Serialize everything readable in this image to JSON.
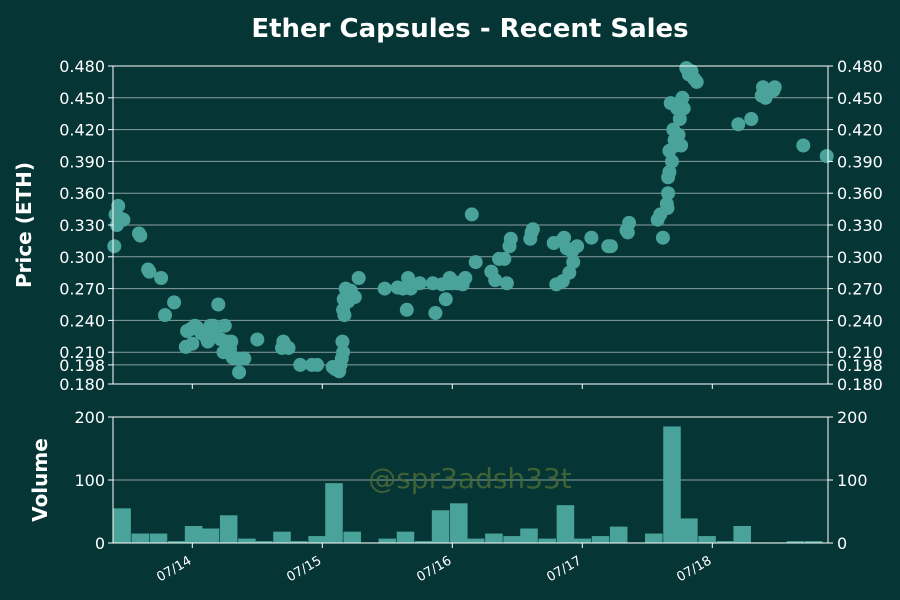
{
  "title": "Ether Capsules - Recent Sales",
  "watermark": "@spr3adsh33t",
  "colors": {
    "background": "#053535",
    "marker": "#4aa39a",
    "text": "#ffffff",
    "grid": "#8aa0a0"
  },
  "chart_data": [
    {
      "type": "scatter",
      "ylabel": "Price (ETH)",
      "ylim": [
        0.18,
        0.48
      ],
      "yticks": [
        "0.180",
        "0.198",
        "0.210",
        "0.240",
        "0.270",
        "0.300",
        "0.330",
        "0.360",
        "0.390",
        "0.420",
        "0.450",
        "0.480"
      ],
      "xlim": [
        13.39,
        18.89
      ],
      "xticks": [
        {
          "value": 14.0,
          "label": "07/14"
        },
        {
          "value": 15.0,
          "label": "07/15"
        },
        {
          "value": 16.0,
          "label": "07/16"
        },
        {
          "value": 17.0,
          "label": "07/17"
        },
        {
          "value": 18.0,
          "label": "07/18"
        }
      ],
      "grid": true,
      "points": [
        [
          13.4,
          0.31
        ],
        [
          13.41,
          0.34
        ],
        [
          13.42,
          0.33
        ],
        [
          13.43,
          0.348
        ],
        [
          13.45,
          0.336
        ],
        [
          13.47,
          0.335
        ],
        [
          13.59,
          0.322
        ],
        [
          13.6,
          0.32
        ],
        [
          13.66,
          0.288
        ],
        [
          13.67,
          0.286
        ],
        [
          13.76,
          0.28
        ],
        [
          13.79,
          0.245
        ],
        [
          13.86,
          0.257
        ],
        [
          13.95,
          0.215
        ],
        [
          13.96,
          0.23
        ],
        [
          13.99,
          0.232
        ],
        [
          14.0,
          0.218
        ],
        [
          14.02,
          0.235
        ],
        [
          14.04,
          0.233
        ],
        [
          14.07,
          0.228
        ],
        [
          14.1,
          0.225
        ],
        [
          14.12,
          0.22
        ],
        [
          14.14,
          0.235
        ],
        [
          14.16,
          0.235
        ],
        [
          14.18,
          0.23
        ],
        [
          14.2,
          0.255
        ],
        [
          14.22,
          0.222
        ],
        [
          14.24,
          0.21
        ],
        [
          14.25,
          0.235
        ],
        [
          14.27,
          0.22
        ],
        [
          14.29,
          0.213
        ],
        [
          14.3,
          0.22
        ],
        [
          14.31,
          0.205
        ],
        [
          14.34,
          0.204
        ],
        [
          14.36,
          0.191
        ],
        [
          14.4,
          0.204
        ],
        [
          14.5,
          0.222
        ],
        [
          14.69,
          0.214
        ],
        [
          14.7,
          0.22
        ],
        [
          14.72,
          0.216
        ],
        [
          14.74,
          0.214
        ],
        [
          14.83,
          0.198
        ],
        [
          14.92,
          0.198
        ],
        [
          14.96,
          0.198
        ],
        [
          15.08,
          0.196
        ],
        [
          15.1,
          0.194
        ],
        [
          15.12,
          0.197
        ],
        [
          15.13,
          0.192
        ],
        [
          15.14,
          0.198
        ],
        [
          15.15,
          0.204
        ],
        [
          15.16,
          0.21
        ],
        [
          15.155,
          0.22
        ],
        [
          15.16,
          0.25
        ],
        [
          15.165,
          0.26
        ],
        [
          15.17,
          0.245
        ],
        [
          15.18,
          0.27
        ],
        [
          15.2,
          0.258
        ],
        [
          15.22,
          0.268
        ],
        [
          15.25,
          0.262
        ],
        [
          15.28,
          0.28
        ],
        [
          15.48,
          0.27
        ],
        [
          15.58,
          0.271
        ],
        [
          15.62,
          0.27
        ],
        [
          15.65,
          0.25
        ],
        [
          15.66,
          0.28
        ],
        [
          15.68,
          0.27
        ],
        [
          15.75,
          0.275
        ],
        [
          15.85,
          0.275
        ],
        [
          15.87,
          0.247
        ],
        [
          15.92,
          0.274
        ],
        [
          15.95,
          0.26
        ],
        [
          15.97,
          0.275
        ],
        [
          15.98,
          0.28
        ],
        [
          16.0,
          0.275
        ],
        [
          16.02,
          0.276
        ],
        [
          16.04,
          0.275
        ],
        [
          16.08,
          0.274
        ],
        [
          16.1,
          0.28
        ],
        [
          16.15,
          0.34
        ],
        [
          16.18,
          0.295
        ],
        [
          16.3,
          0.286
        ],
        [
          16.33,
          0.278
        ],
        [
          16.36,
          0.298
        ],
        [
          16.4,
          0.298
        ],
        [
          16.42,
          0.275
        ],
        [
          16.44,
          0.31
        ],
        [
          16.45,
          0.317
        ],
        [
          16.6,
          0.317
        ],
        [
          16.61,
          0.323
        ],
        [
          16.62,
          0.326
        ],
        [
          16.78,
          0.313
        ],
        [
          16.8,
          0.274
        ],
        [
          16.84,
          0.315
        ],
        [
          16.85,
          0.277
        ],
        [
          16.86,
          0.318
        ],
        [
          16.88,
          0.308
        ],
        [
          16.9,
          0.285
        ],
        [
          16.92,
          0.305
        ],
        [
          16.93,
          0.295
        ],
        [
          16.96,
          0.31
        ],
        [
          17.07,
          0.318
        ],
        [
          17.2,
          0.31
        ],
        [
          17.22,
          0.31
        ],
        [
          17.34,
          0.325
        ],
        [
          17.35,
          0.323
        ],
        [
          17.36,
          0.332
        ],
        [
          17.58,
          0.335
        ],
        [
          17.6,
          0.34
        ],
        [
          17.62,
          0.318
        ],
        [
          17.65,
          0.35
        ],
        [
          17.66,
          0.36
        ],
        [
          17.655,
          0.346
        ],
        [
          17.66,
          0.375
        ],
        [
          17.67,
          0.38
        ],
        [
          17.67,
          0.4
        ],
        [
          17.68,
          0.445
        ],
        [
          17.69,
          0.39
        ],
        [
          17.7,
          0.42
        ],
        [
          17.71,
          0.41
        ],
        [
          17.72,
          0.405
        ],
        [
          17.73,
          0.44
        ],
        [
          17.74,
          0.415
        ],
        [
          17.75,
          0.43
        ],
        [
          17.76,
          0.405
        ],
        [
          17.77,
          0.45
        ],
        [
          17.78,
          0.44
        ],
        [
          17.8,
          0.478
        ],
        [
          17.82,
          0.472
        ],
        [
          17.84,
          0.475
        ],
        [
          17.86,
          0.468
        ],
        [
          17.88,
          0.465
        ],
        [
          18.2,
          0.425
        ],
        [
          18.3,
          0.43
        ],
        [
          18.38,
          0.452
        ],
        [
          18.39,
          0.46
        ],
        [
          18.41,
          0.45
        ],
        [
          18.47,
          0.457
        ],
        [
          18.48,
          0.46
        ],
        [
          18.7,
          0.405
        ],
        [
          18.88,
          0.395
        ]
      ]
    },
    {
      "type": "bar",
      "ylabel": "Volume",
      "ylim": [
        0,
        200
      ],
      "yticks": [
        "0",
        "100",
        "200"
      ],
      "grid": true,
      "bar_width_days": 0.135,
      "x": [
        13.46,
        13.6,
        13.74,
        13.88,
        14.01,
        14.14,
        14.28,
        14.42,
        14.55,
        14.69,
        14.82,
        14.96,
        15.09,
        15.23,
        15.37,
        15.5,
        15.64,
        15.78,
        15.91,
        16.05,
        16.18,
        16.32,
        16.46,
        16.59,
        16.73,
        16.87,
        17.0,
        17.14,
        17.28,
        17.41,
        17.55,
        17.69,
        17.82,
        17.96,
        18.1,
        18.23,
        18.37,
        18.51,
        18.64,
        18.78
      ],
      "values": [
        55,
        15,
        15,
        3,
        27,
        23,
        44,
        7,
        3,
        18,
        3,
        11,
        95,
        18,
        1,
        7,
        18,
        3,
        52,
        63,
        7,
        15,
        11,
        23,
        7,
        60,
        7,
        11,
        26,
        1,
        15,
        185,
        39,
        11,
        3,
        27,
        1,
        1,
        3,
        3
      ]
    }
  ]
}
